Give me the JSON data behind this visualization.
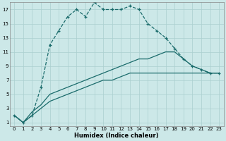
{
  "xlabel": "Humidex (Indice chaleur)",
  "background_color": "#cce8e8",
  "grid_color": "#aacfcf",
  "line_color": "#1a6b6b",
  "xlim": [
    -0.5,
    23.5
  ],
  "ylim": [
    0.5,
    18
  ],
  "xticks": [
    0,
    1,
    2,
    3,
    4,
    5,
    6,
    7,
    8,
    9,
    10,
    11,
    12,
    13,
    14,
    15,
    16,
    17,
    18,
    19,
    20,
    21,
    22,
    23
  ],
  "yticks": [
    1,
    3,
    5,
    7,
    9,
    11,
    13,
    15,
    17
  ],
  "line1_x": [
    0,
    1,
    2,
    3,
    4,
    5,
    6,
    7,
    8,
    9,
    10,
    11,
    12,
    13,
    14,
    15,
    16,
    17,
    18,
    19,
    20,
    21,
    22,
    23
  ],
  "line1_y": [
    2,
    1,
    2,
    6,
    12,
    14,
    16,
    17,
    16,
    18,
    17,
    17,
    17,
    17.5,
    17,
    15,
    14,
    13,
    11.5,
    10,
    9,
    8.5,
    8,
    8
  ],
  "line2_x": [
    0,
    1,
    2,
    3,
    4,
    5,
    6,
    7,
    8,
    9,
    10,
    11,
    12,
    13,
    14,
    15,
    16,
    17,
    18,
    19,
    20,
    21,
    22,
    23
  ],
  "line2_y": [
    2,
    1,
    2.5,
    3.5,
    5,
    5.5,
    6,
    6.5,
    7,
    7.5,
    8,
    8.5,
    9,
    9.5,
    10,
    10,
    10.5,
    11,
    11,
    10,
    9,
    8.5,
    8,
    8
  ],
  "line3_x": [
    0,
    1,
    2,
    3,
    4,
    5,
    6,
    7,
    8,
    9,
    10,
    11,
    12,
    13,
    14,
    15,
    16,
    17,
    18,
    19,
    20,
    21,
    22,
    23
  ],
  "line3_y": [
    2,
    1,
    2,
    3,
    4,
    4.5,
    5,
    5.5,
    6,
    6.5,
    7,
    7,
    7.5,
    8,
    8,
    8,
    8,
    8,
    8,
    8,
    8,
    8,
    8,
    8
  ]
}
